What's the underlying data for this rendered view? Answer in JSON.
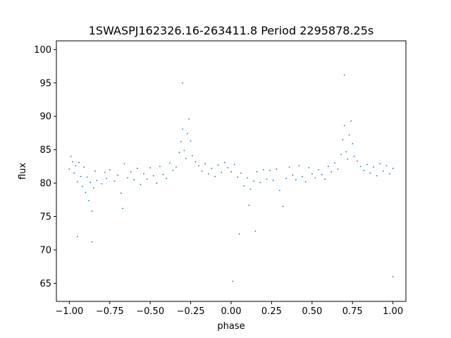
{
  "chart_data": {
    "type": "scatter",
    "title": "1SWASPJ162326.16-263411.8 Period 2295878.25s",
    "xlabel": "phase",
    "ylabel": "flux",
    "xlim": [
      -1.08,
      1.08
    ],
    "ylim": [
      62.3,
      101.3
    ],
    "xticks": [
      -1.0,
      -0.75,
      -0.5,
      -0.25,
      0.0,
      0.25,
      0.5,
      0.75,
      1.0
    ],
    "xtick_labels": [
      "−1.00",
      "−0.75",
      "−0.50",
      "−0.25",
      "0.00",
      "0.25",
      "0.50",
      "0.75",
      "1.00"
    ],
    "yticks": [
      65,
      70,
      75,
      80,
      85,
      90,
      95,
      100
    ],
    "ytick_labels": [
      "65",
      "70",
      "75",
      "80",
      "85",
      "90",
      "95",
      "100"
    ],
    "grid": false,
    "legend": "none",
    "marker_color": "#1f77b4",
    "series": [
      {
        "points": [
          [
            -1.0,
            82.1
          ],
          [
            -0.99,
            84.0
          ],
          [
            -0.98,
            83.2
          ],
          [
            -0.97,
            81.5
          ],
          [
            -0.96,
            82.6
          ],
          [
            -0.95,
            80.2
          ],
          [
            -0.95,
            72.0
          ],
          [
            -0.94,
            83.1
          ],
          [
            -0.93,
            81.0
          ],
          [
            -0.92,
            79.5
          ],
          [
            -0.91,
            82.4
          ],
          [
            -0.9,
            78.6
          ],
          [
            -0.89,
            80.9
          ],
          [
            -0.88,
            77.4
          ],
          [
            -0.87,
            80.1
          ],
          [
            -0.86,
            75.8
          ],
          [
            -0.86,
            71.2
          ],
          [
            -0.85,
            79.3
          ],
          [
            -0.84,
            81.8
          ],
          [
            -0.83,
            80.4
          ],
          [
            -0.8,
            79.9
          ],
          [
            -0.78,
            81.6
          ],
          [
            -0.77,
            80.7
          ],
          [
            -0.75,
            82.0
          ],
          [
            -0.72,
            80.3
          ],
          [
            -0.7,
            81.2
          ],
          [
            -0.68,
            78.5
          ],
          [
            -0.67,
            76.2
          ],
          [
            -0.66,
            82.9
          ],
          [
            -0.64,
            80.8
          ],
          [
            -0.62,
            81.7
          ],
          [
            -0.6,
            80.5
          ],
          [
            -0.58,
            82.2
          ],
          [
            -0.56,
            79.8
          ],
          [
            -0.54,
            81.4
          ],
          [
            -0.52,
            80.6
          ],
          [
            -0.5,
            82.3
          ],
          [
            -0.48,
            81.1
          ],
          [
            -0.46,
            80.0
          ],
          [
            -0.44,
            82.5
          ],
          [
            -0.42,
            81.3
          ],
          [
            -0.4,
            80.7
          ],
          [
            -0.38,
            83.0
          ],
          [
            -0.36,
            81.9
          ],
          [
            -0.34,
            82.4
          ],
          [
            -0.32,
            84.6
          ],
          [
            -0.31,
            86.2
          ],
          [
            -0.3,
            88.1
          ],
          [
            -0.3,
            95.0
          ],
          [
            -0.29,
            84.9
          ],
          [
            -0.28,
            83.7
          ],
          [
            -0.27,
            87.4
          ],
          [
            -0.26,
            89.6
          ],
          [
            -0.25,
            86.3
          ],
          [
            -0.24,
            84.1
          ],
          [
            -0.22,
            83.2
          ],
          [
            -0.2,
            82.6
          ],
          [
            -0.18,
            81.8
          ],
          [
            -0.16,
            82.9
          ],
          [
            -0.14,
            81.4
          ],
          [
            -0.12,
            82.2
          ],
          [
            -0.1,
            81.0
          ],
          [
            -0.08,
            82.7
          ],
          [
            -0.06,
            81.6
          ],
          [
            -0.04,
            83.1
          ],
          [
            -0.02,
            82.3
          ],
          [
            0.0,
            81.7
          ],
          [
            0.01,
            65.3
          ],
          [
            0.02,
            82.8
          ],
          [
            0.04,
            80.9
          ],
          [
            0.05,
            72.4
          ],
          [
            0.06,
            81.5
          ],
          [
            0.08,
            79.6
          ],
          [
            0.1,
            80.8
          ],
          [
            0.11,
            76.7
          ],
          [
            0.12,
            79.1
          ],
          [
            0.14,
            80.3
          ],
          [
            0.15,
            72.8
          ],
          [
            0.16,
            81.7
          ],
          [
            0.18,
            80.1
          ],
          [
            0.2,
            82.0
          ],
          [
            0.22,
            80.6
          ],
          [
            0.24,
            81.9
          ],
          [
            0.26,
            80.4
          ],
          [
            0.28,
            82.1
          ],
          [
            0.3,
            78.9
          ],
          [
            0.32,
            76.5
          ],
          [
            0.34,
            80.7
          ],
          [
            0.36,
            82.4
          ],
          [
            0.38,
            81.2
          ],
          [
            0.4,
            80.5
          ],
          [
            0.42,
            82.6
          ],
          [
            0.44,
            81.0
          ],
          [
            0.46,
            80.2
          ],
          [
            0.48,
            82.3
          ],
          [
            0.5,
            81.4
          ],
          [
            0.52,
            80.8
          ],
          [
            0.54,
            82.0
          ],
          [
            0.56,
            81.3
          ],
          [
            0.58,
            80.6
          ],
          [
            0.6,
            82.5
          ],
          [
            0.62,
            81.7
          ],
          [
            0.64,
            83.0
          ],
          [
            0.66,
            82.1
          ],
          [
            0.68,
            84.3
          ],
          [
            0.69,
            86.5
          ],
          [
            0.7,
            88.6
          ],
          [
            0.7,
            96.2
          ],
          [
            0.71,
            84.7
          ],
          [
            0.72,
            83.6
          ],
          [
            0.73,
            87.2
          ],
          [
            0.74,
            89.3
          ],
          [
            0.75,
            85.9
          ],
          [
            0.76,
            84.0
          ],
          [
            0.78,
            83.3
          ],
          [
            0.8,
            82.5
          ],
          [
            0.82,
            81.9
          ],
          [
            0.84,
            82.8
          ],
          [
            0.86,
            81.5
          ],
          [
            0.88,
            82.4
          ],
          [
            0.9,
            81.1
          ],
          [
            0.92,
            82.9
          ],
          [
            0.94,
            81.8
          ],
          [
            0.96,
            82.6
          ],
          [
            0.98,
            81.4
          ],
          [
            1.0,
            82.2
          ],
          [
            1.0,
            66.0
          ]
        ]
      }
    ]
  }
}
